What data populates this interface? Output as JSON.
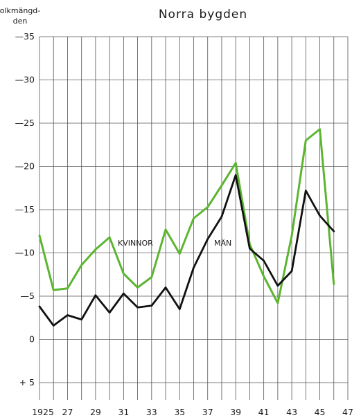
{
  "chart_data": {
    "type": "line",
    "title": "Norra bygden",
    "ylabel_lines": [
      "olkmängd-",
      "den"
    ],
    "x": [
      1925,
      1926,
      1927,
      1928,
      1929,
      1930,
      1931,
      1932,
      1933,
      1934,
      1935,
      1936,
      1937,
      1938,
      1939,
      1940,
      1941,
      1942,
      1943,
      1944,
      1945,
      1946
    ],
    "x_ticks": [
      1925,
      1927,
      1929,
      1931,
      1933,
      1935,
      1937,
      1939,
      1941,
      1943,
      1945,
      1947
    ],
    "x_tick_labels": [
      "1925",
      "27",
      "29",
      "31",
      "33",
      "35",
      "37",
      "39",
      "41",
      "43",
      "45",
      "47"
    ],
    "xlim": [
      1925,
      1947
    ],
    "ylim": [
      -7,
      35
    ],
    "y_ticks": [
      35,
      30,
      25,
      20,
      15,
      10,
      5,
      0,
      -5
    ],
    "y_tick_labels": [
      "—35",
      "—30",
      "—25",
      "—20",
      "—15",
      "—10",
      "—5",
      "0",
      "+ 5"
    ],
    "grid": true,
    "series": [
      {
        "name": "KVINNOR",
        "color": "#5cb531",
        "values": [
          12.0,
          5.7,
          5.9,
          8.6,
          10.4,
          11.8,
          7.6,
          6.0,
          7.2,
          12.7,
          9.9,
          14.0,
          15.3,
          17.8,
          20.4,
          11.0,
          7.3,
          4.2,
          12.0,
          23.0,
          24.3,
          6.4
        ]
      },
      {
        "name": "MÄN",
        "color": "#111111",
        "values": [
          3.8,
          1.6,
          2.8,
          2.3,
          5.1,
          3.1,
          5.3,
          3.7,
          3.9,
          6.0,
          3.5,
          8.3,
          11.6,
          14.2,
          19.0,
          10.5,
          9.1,
          6.2,
          7.9,
          17.2,
          14.3,
          12.5
        ]
      }
    ]
  }
}
